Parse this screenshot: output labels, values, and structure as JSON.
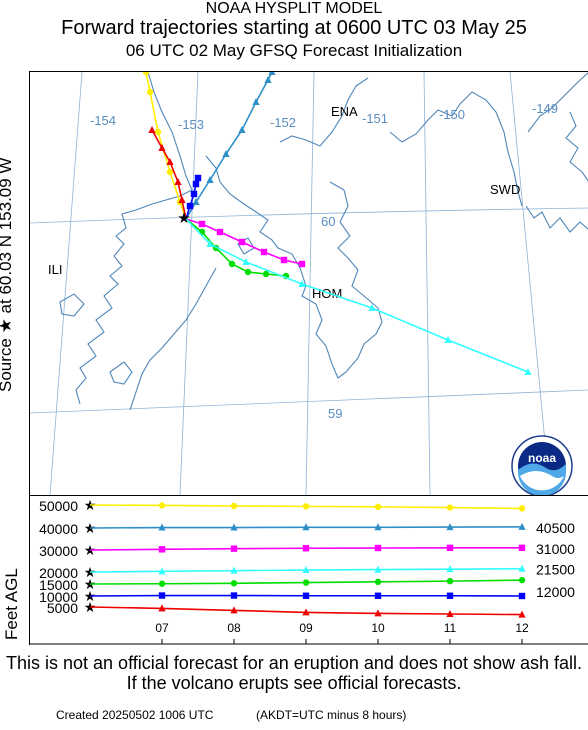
{
  "header": {
    "model": "NOAA HYSPLIT MODEL",
    "title": "Forward trajectories starting at 0600 UTC 03 May 25",
    "subtitle": "06 UTC 02 May    GFSQ  Forecast Initialization"
  },
  "source_label": "Source ★  at   60.03 N  153.09 W",
  "feet_label": "Feet AGL",
  "map": {
    "lon_labels": [
      "-154",
      "-153",
      "-152",
      "-151",
      "-150",
      "-149"
    ],
    "lat_labels": [
      "60",
      "59"
    ],
    "places": [
      "ENA",
      "SWD",
      "ILI",
      "HOM"
    ],
    "source_marker": "★",
    "logo_text": "noaa",
    "colors": {
      "coast": "#4f86b8",
      "grid": "#8fb3d6",
      "label": "#5a8ec0"
    }
  },
  "chart_data": {
    "type": "line",
    "x": [
      "07",
      "08",
      "09",
      "10",
      "11",
      "12"
    ],
    "xlim": [
      6.0,
      12.0
    ],
    "ylim": [
      0,
      51000
    ],
    "left_ticks": [
      "50000",
      "40000",
      "30000",
      "20000",
      "15000",
      "10000",
      "5000"
    ],
    "right_labels": [
      "40500",
      "31000",
      "21500",
      "12000"
    ],
    "series": [
      {
        "color": "#ffee00",
        "marker": "circle",
        "start": 50000,
        "values": [
          49800,
          49600,
          49400,
          49200,
          48900,
          48500
        ]
      },
      {
        "color": "#2f8fc8",
        "marker": "triangle",
        "start": 40000,
        "values": [
          40200,
          40200,
          40300,
          40300,
          40400,
          40500
        ]
      },
      {
        "color": "#ff00ff",
        "marker": "square",
        "start": 30000,
        "values": [
          30300,
          30600,
          30800,
          30900,
          31000,
          31000
        ]
      },
      {
        "color": "#33ffff",
        "marker": "triangle",
        "start": 20000,
        "values": [
          20300,
          20600,
          20900,
          21100,
          21300,
          21500
        ]
      },
      {
        "color": "#00dd00",
        "marker": "circle",
        "start": 15000,
        "values": [
          15100,
          15300,
          15600,
          15900,
          16200,
          16600
        ]
      },
      {
        "color": "#0000ff",
        "marker": "square",
        "start": 10000,
        "values": [
          10200,
          10200,
          10100,
          10100,
          10100,
          10000
        ]
      },
      {
        "color": "#ee0000",
        "marker": "triangle",
        "start": 5000,
        "values": [
          4300,
          3300,
          2300,
          1800,
          1500,
          1200
        ]
      }
    ]
  },
  "disclaimer": "This is not an official forecast for an eruption and does not show ash fall. If the volcano erupts see official forecasts.",
  "footer": {
    "created": "Created 20250502 1006 UTC",
    "akdt": "(AKDT=UTC minus 8 hours)"
  }
}
